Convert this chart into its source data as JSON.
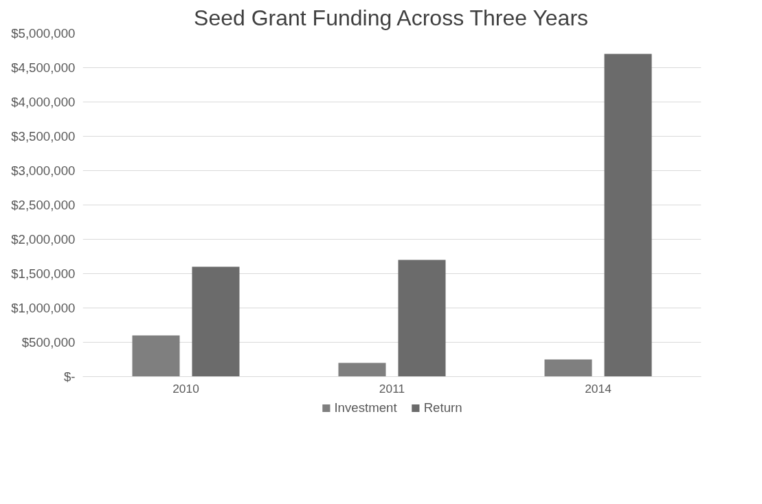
{
  "chart_data": {
    "type": "bar",
    "title": "Seed Grant Funding Across Three Years",
    "categories": [
      "2010",
      "2011",
      "2014"
    ],
    "series": [
      {
        "name": "Investment",
        "color": "#7f7f7f",
        "values": [
          600000,
          200000,
          250000
        ]
      },
      {
        "name": "Return",
        "color": "#6b6b6b",
        "values": [
          1600000,
          1700000,
          4700000
        ]
      }
    ],
    "ylim": [
      0,
      5000000
    ],
    "yticks": [
      {
        "value": 0,
        "label": "$-"
      },
      {
        "value": 500000,
        "label": "$500,000"
      },
      {
        "value": 1000000,
        "label": "$1,000,000"
      },
      {
        "value": 1500000,
        "label": "$1,500,000"
      },
      {
        "value": 2000000,
        "label": "$2,000,000"
      },
      {
        "value": 2500000,
        "label": "$2,500,000"
      },
      {
        "value": 3000000,
        "label": "$3,000,000"
      },
      {
        "value": 3500000,
        "label": "$3,500,000"
      },
      {
        "value": 4000000,
        "label": "$4,000,000"
      },
      {
        "value": 4500000,
        "label": "$4,500,000"
      },
      {
        "value": 5000000,
        "label": "$5,000,000"
      }
    ],
    "grid": "y",
    "legend": "bottom"
  }
}
